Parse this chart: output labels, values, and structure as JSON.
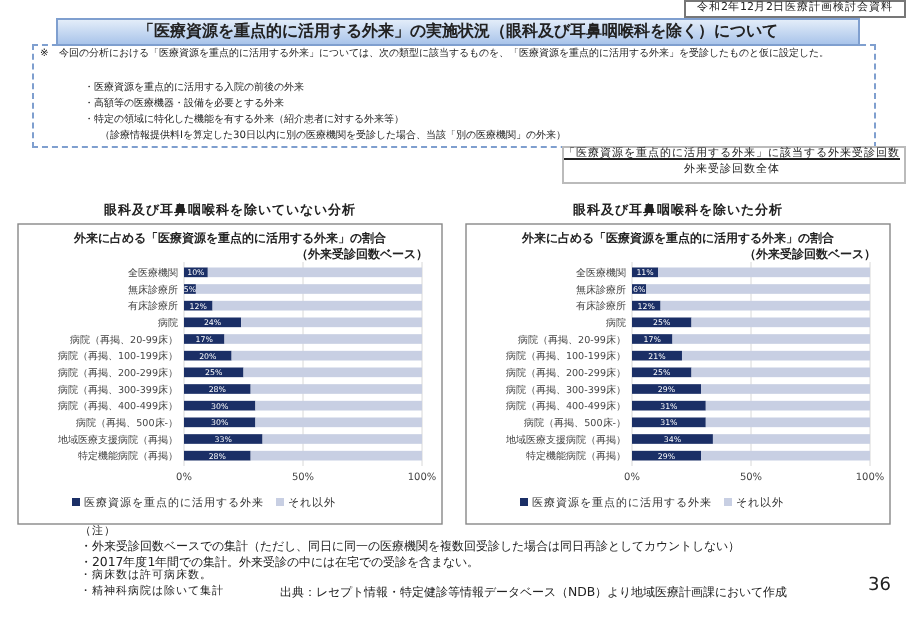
{
  "chart_data": [
    {
      "type": "other",
      "title": "「医療資源を重点的に活用する外来」の実施状況（眼科及び耳鼻咽喉科を除く）について",
      "annotations": [
        "令和2年12月2日医療計画検討会資料",
        "※　今回の分析における「医療資源を重点的に活用する外来」については、次の類型に該当するものを、「医療資源を重点的に活用する外来」を受診したものと仮に設定した。",
        "・医療資源を重点的に活用する入院の前後の外来",
        "・高額等の医療機器・設備を必要とする外来",
        "・特定の領域に特化した機能を有する外来（紹介患者に対する外来等）",
        "（診療情報提供料Ⅰを算定した30日以内に別の医療機関を受診した場合、当該「別の医療機関」の外来）",
        "「医療資源を重点的に活用する外来」に該当する外来受診回数",
        "外来受診回数全体",
        "（注）",
        "・外来受診回数ベースでの集計（ただし、同日に同一の医療機関を複数回受診した場合は同日再診としてカウントしない）",
        "・2017年度1年間での集計。外来受診の中には在宅での受診を含まない。",
        "・病床数は許可病床数。",
        "・精神科病院は除いて集計",
        "出典：レセプト情報・特定健診等情報データベース（NDB）より地域医療計画課において作成",
        "36"
      ]
    },
    {
      "type": "bar",
      "orientation": "horizontal",
      "stacked": true,
      "title": "外来に占める「医療資源を重点的に活用する外来」の割合",
      "subtitle": "（外来受診回数ベース）",
      "annotations": [
        "眼科及び耳鼻咽喉科を除いていない分析"
      ],
      "categories": [
        "全医療機関",
        "無床診療所",
        "有床診療所",
        "病院",
        "病院（再掲、20-99床）",
        "病院（再掲、100-199床）",
        "病院（再掲、200-299床）",
        "病院（再掲、300-399床）",
        "病院（再掲、400-499床）",
        "病院（再掲、500床-）",
        "地域医療支援病院（再掲）",
        "特定機能病院（再掲）"
      ],
      "series": [
        {
          "name": "医療資源を重点的に活用する外来",
          "color": "#1b2f66",
          "values": [
            10,
            5,
            12,
            24,
            17,
            20,
            25,
            28,
            30,
            30,
            33,
            28
          ],
          "value_labels": [
            "10%",
            "5%",
            "12%",
            "24%",
            "17%",
            "20%",
            "25%",
            "28%",
            "30%",
            "30%",
            "33%",
            "28%"
          ]
        },
        {
          "name": "それ以外",
          "color": "#c8cfe3",
          "values": [
            90,
            95,
            88,
            76,
            83,
            80,
            75,
            72,
            70,
            70,
            67,
            72
          ]
        }
      ],
      "xlim": [
        0,
        100
      ],
      "xticks": [
        {
          "value": 0,
          "label": "0%"
        },
        {
          "value": 50,
          "label": "50%"
        },
        {
          "value": 100,
          "label": "100%"
        }
      ],
      "grid": "x",
      "legend": "bottom"
    },
    {
      "type": "bar",
      "orientation": "horizontal",
      "stacked": true,
      "title": "外来に占める「医療資源を重点的に活用する外来」の割合",
      "subtitle": "（外来受診回数ベース）",
      "annotations": [
        "眼科及び耳鼻咽喉科を除いた分析"
      ],
      "categories": [
        "全医療機関",
        "無床診療所",
        "有床診療所",
        "病院",
        "病院（再掲、20-99床）",
        "病院（再掲、100-199床）",
        "病院（再掲、200-299床）",
        "病院（再掲、300-399床）",
        "病院（再掲、400-499床）",
        "病院（再掲、500床-）",
        "地域医療支援病院（再掲）",
        "特定機能病院（再掲）"
      ],
      "series": [
        {
          "name": "医療資源を重点的に活用する外来",
          "color": "#1b2f66",
          "values": [
            11,
            6,
            12,
            25,
            17,
            21,
            25,
            29,
            31,
            31,
            34,
            29
          ],
          "value_labels": [
            "11%",
            "6%",
            "12%",
            "25%",
            "17%",
            "21%",
            "25%",
            "29%",
            "31%",
            "31%",
            "34%",
            "29%"
          ]
        },
        {
          "name": "それ以外",
          "color": "#c8cfe3",
          "values": [
            89,
            94,
            88,
            75,
            83,
            79,
            75,
            71,
            69,
            69,
            66,
            71
          ]
        }
      ],
      "xlim": [
        0,
        100
      ],
      "xticks": [
        {
          "value": 0,
          "label": "0%"
        },
        {
          "value": 50,
          "label": "50%"
        },
        {
          "value": 100,
          "label": "100%"
        }
      ],
      "grid": "x",
      "legend": "bottom"
    }
  ]
}
